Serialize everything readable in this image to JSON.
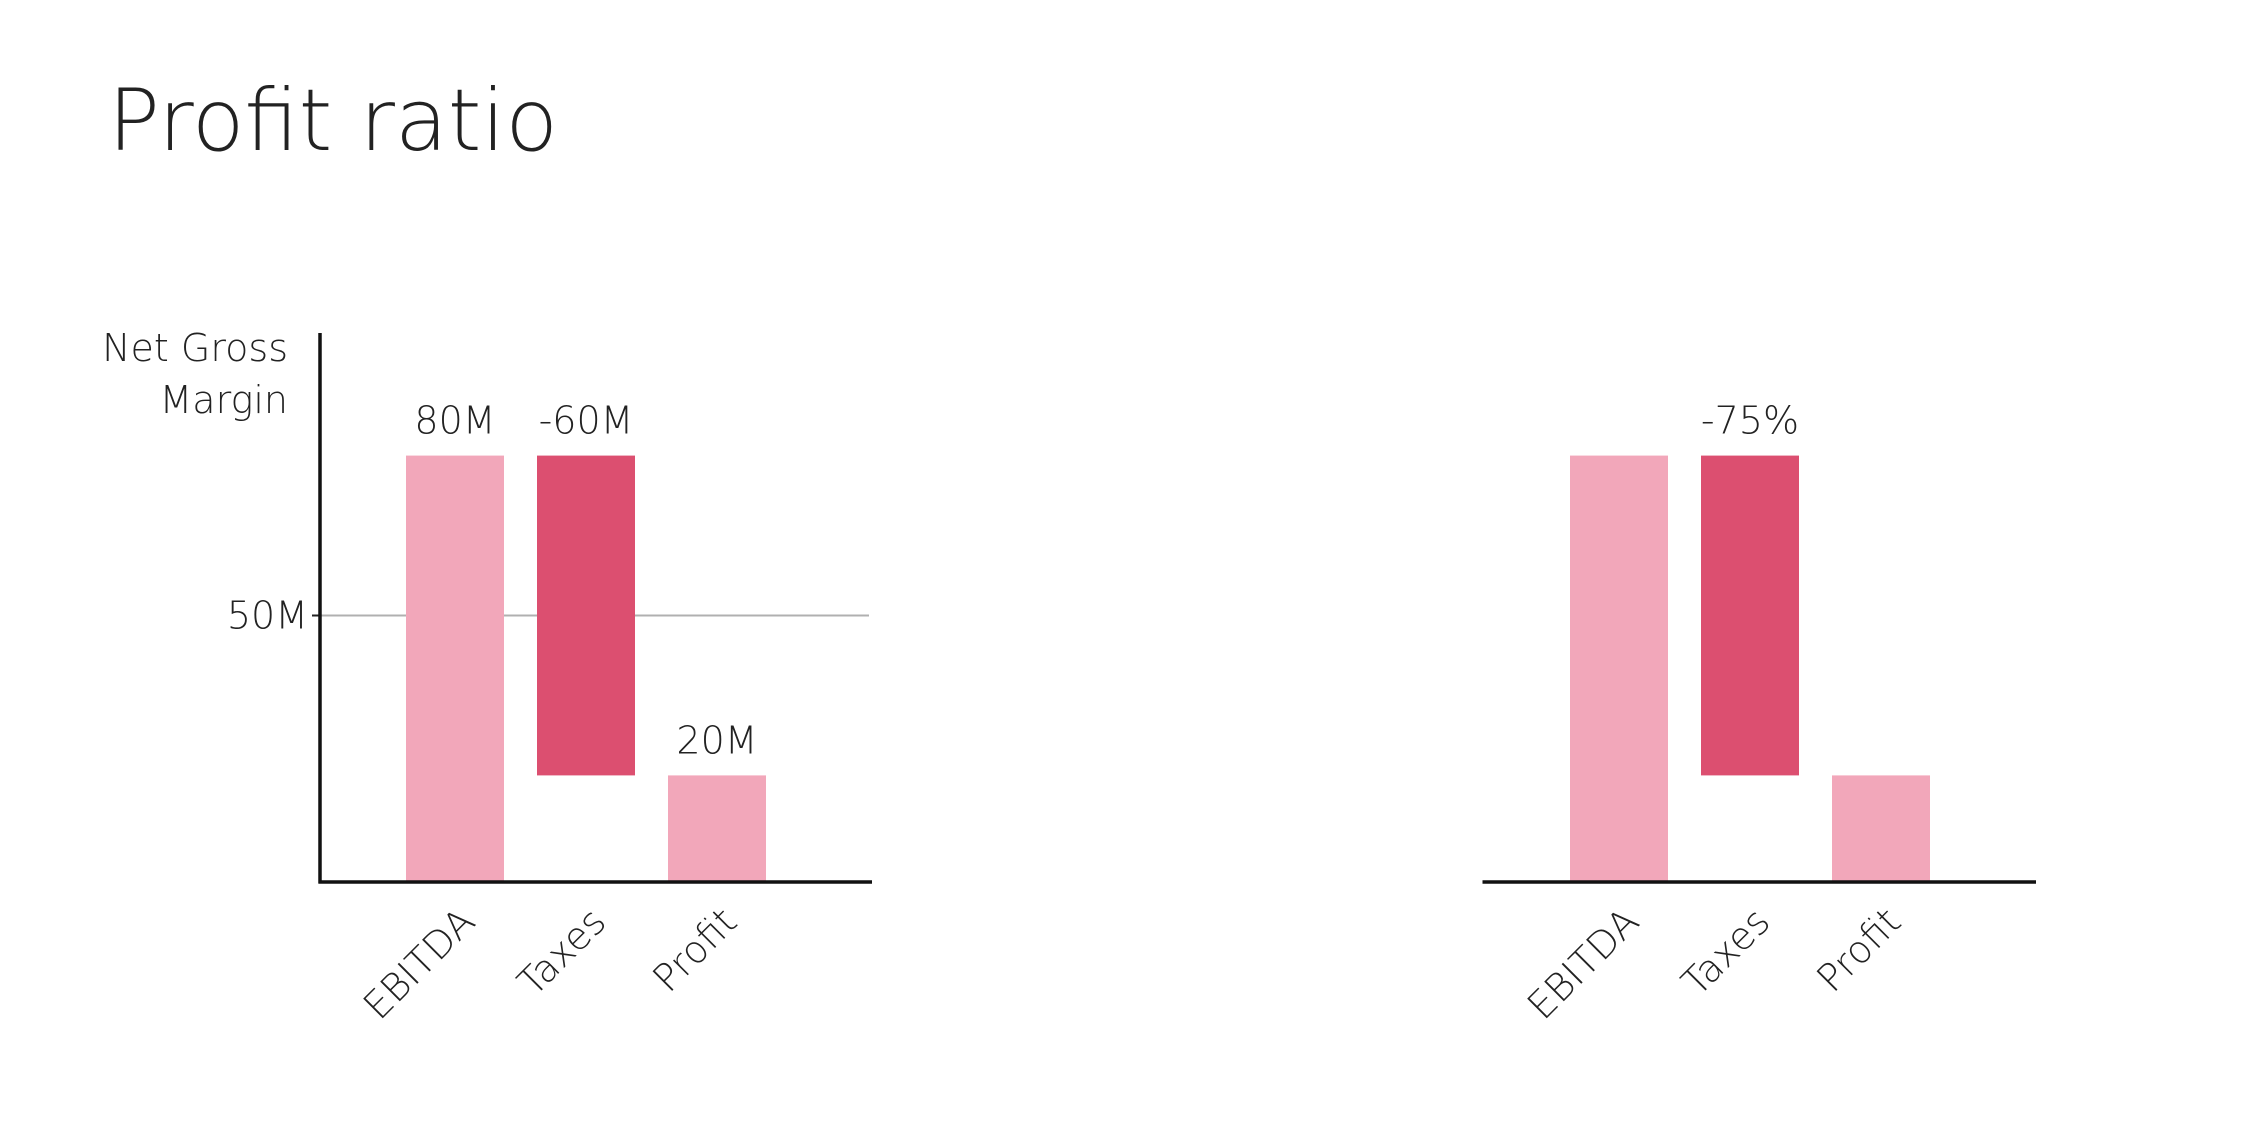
{
  "title": "Profit ratio",
  "chart_data": [
    {
      "type": "waterfall",
      "y_label": "Net Gross Margin",
      "categories": [
        "EBITDA",
        "Taxes",
        "Profit"
      ],
      "values": [
        80,
        -60,
        20
      ],
      "value_labels": [
        "80M",
        "-60M",
        "20M"
      ],
      "colors": [
        "#f2a7ba",
        "#dc4f70",
        "#f2a7ba"
      ],
      "last_is_total": true,
      "ylim": [
        0,
        103
      ],
      "yticks": [
        {
          "value": 50,
          "label": "50M"
        }
      ],
      "grid": true,
      "y_axis": true
    },
    {
      "type": "waterfall",
      "categories": [
        "EBITDA",
        "Taxes",
        "Profit"
      ],
      "values": [
        80,
        -60,
        20
      ],
      "value_labels": [
        null,
        "-75%",
        null
      ],
      "colors": [
        "#f2a7ba",
        "#dc4f70",
        "#f2a7ba"
      ],
      "last_is_total": true,
      "ylim": [
        0,
        103
      ],
      "yticks": [],
      "grid": false,
      "y_axis": false
    }
  ]
}
